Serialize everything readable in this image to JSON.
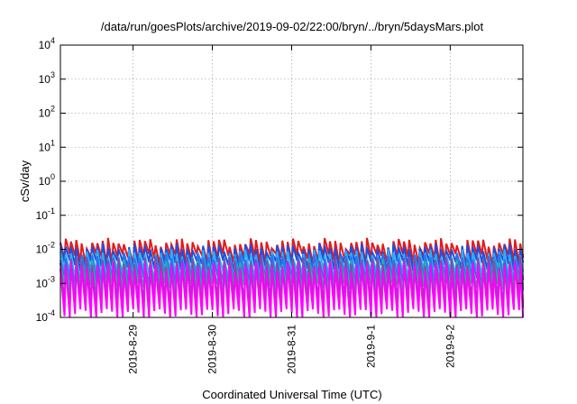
{
  "chart_data": {
    "type": "line",
    "title": "/data/run/goesPlots/archive/2019-09-02/22:00/bryn/../bryn/5daysMars.plot",
    "xlabel": "Coordinated Universal Time (UTC)",
    "ylabel": "cSv/day",
    "yscale": "log",
    "ylim": [
      0.0001,
      10000
    ],
    "xlim": [
      "2019-08-28T02:00",
      "2019-09-02T22:00"
    ],
    "yticks": [
      {
        "value": 0.0001,
        "base": "10",
        "exp": "-4"
      },
      {
        "value": 0.001,
        "base": "10",
        "exp": "-3"
      },
      {
        "value": 0.01,
        "base": "10",
        "exp": "-2"
      },
      {
        "value": 0.1,
        "base": "10",
        "exp": "-1"
      },
      {
        "value": 1,
        "base": "10",
        "exp": "0"
      },
      {
        "value": 10,
        "base": "10",
        "exp": "1"
      },
      {
        "value": 100,
        "base": "10",
        "exp": "2"
      },
      {
        "value": 1000,
        "base": "10",
        "exp": "3"
      },
      {
        "value": 10000,
        "base": "10",
        "exp": "4"
      }
    ],
    "xticks": [
      "2019-8-29",
      "2019-8-30",
      "2019-8-31",
      "2019-9-1",
      "2019-9-2"
    ],
    "grid": true,
    "sawtooth_period_hours": 1.6,
    "series": [
      {
        "color": "#e31a1c",
        "peak": 0.016,
        "trough": 0.0055
      },
      {
        "color": "#1f4fe0",
        "peak": 0.011,
        "trough": 0.0035
      },
      {
        "color": "#2ab0f0",
        "peak": 0.0075,
        "trough": 0.0018
      },
      {
        "color": "#3070f0",
        "peak": 0.0055,
        "trough": 0.0012
      },
      {
        "color": "#18b7a8",
        "peak": 0.0042,
        "trough": 0.00075
      },
      {
        "color": "#8e44ad",
        "peak": 0.0045,
        "trough": 0.00028
      },
      {
        "color": "#ff00ff",
        "peak": 0.0032,
        "trough": 0.00013
      }
    ]
  }
}
